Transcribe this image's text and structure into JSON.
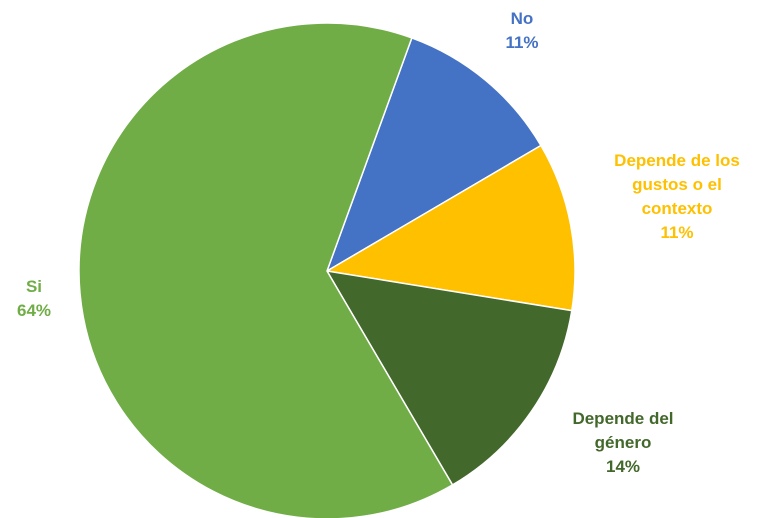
{
  "chart_data": {
    "type": "pie",
    "title": "",
    "slices": [
      {
        "label_lines": [
          "No"
        ],
        "value_label": "11%",
        "value": 11,
        "color": "#4472C4"
      },
      {
        "label_lines": [
          "Depende de los",
          "gustos o el",
          "contexto"
        ],
        "value_label": "11%",
        "value": 11,
        "color": "#FFC000"
      },
      {
        "label_lines": [
          "Depende del",
          "género"
        ],
        "value_label": "14%",
        "value": 14,
        "color": "#43682B"
      },
      {
        "label_lines": [
          "Si"
        ],
        "value_label": "64%",
        "value": 64,
        "color": "#70AD47"
      }
    ]
  }
}
